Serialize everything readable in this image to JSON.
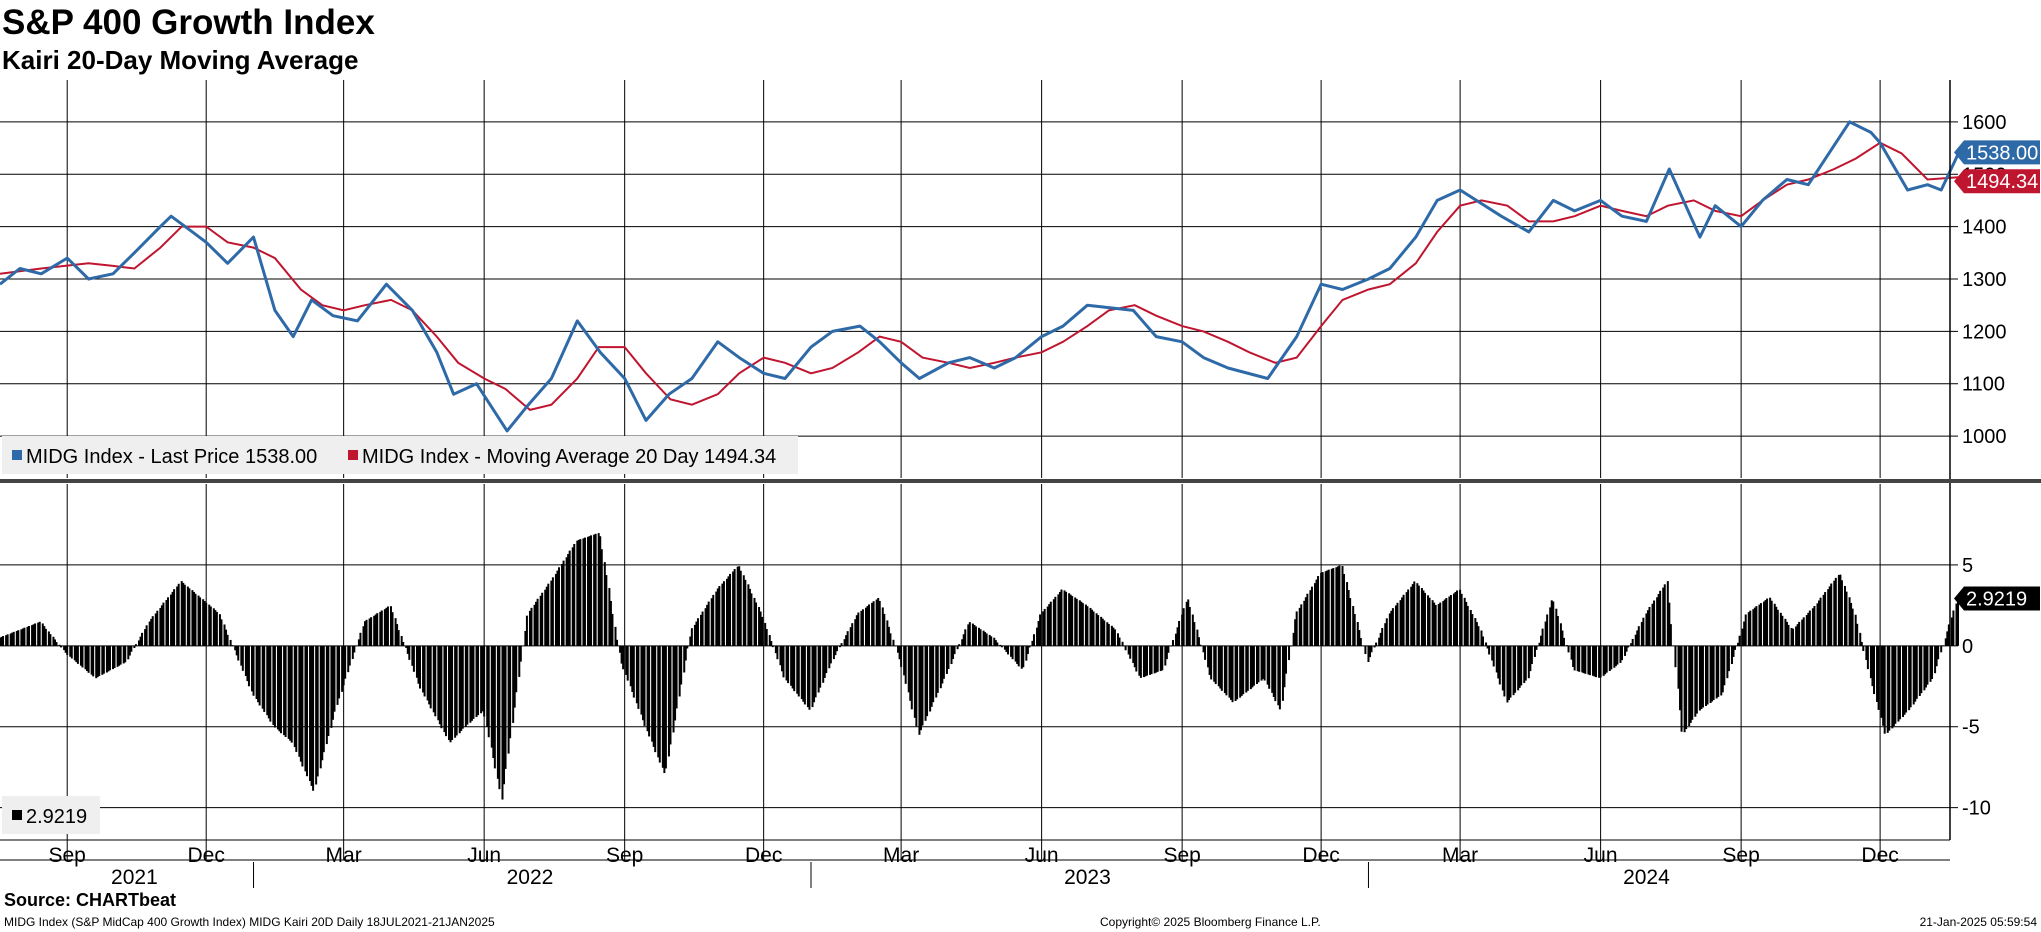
{
  "title": "S&P 400 Growth Index",
  "subtitle": "Kairi 20-Day Moving Average",
  "footer": {
    "source": "Source: CHARTbeat",
    "description": "MIDG Index (S&P MidCap 400 Growth Index) MIDG Kairi 20D  Daily 18JUL2021-21JAN2025",
    "copyright": "Copyright© 2025 Bloomberg Finance L.P.",
    "timestamp": "21-Jan-2025 05:59:54"
  },
  "colors": {
    "price": "#2f6aa8",
    "moving_average": "#c0152f",
    "kairi": "#000000"
  },
  "chart_data": [
    {
      "type": "line",
      "ylim": [
        920,
        1680
      ],
      "yticks": [
        1000,
        1100,
        1200,
        1300,
        1400,
        1500,
        1600
      ],
      "grid": true,
      "legend_position": "bottom-left",
      "legend": [
        {
          "label": "MIDG Index - Last Price 1538.00",
          "color": "#2f6aa8"
        },
        {
          "label": "MIDG Index - Moving Average 20 Day 1494.34",
          "color": "#c0152f"
        }
      ],
      "value_tags": [
        {
          "label": "1538.00",
          "value": 1538.0,
          "color": "#2f6aa8"
        },
        {
          "label": "1494.34",
          "value": 1494.34,
          "color": "#c0152f"
        }
      ],
      "series": [
        {
          "key": "last_price",
          "color": "#2f6aa8",
          "x": [
            "2021-07-19",
            "2021-08-01",
            "2021-08-15",
            "2021-09-01",
            "2021-09-15",
            "2021-10-01",
            "2021-10-15",
            "2021-11-01",
            "2021-11-08",
            "2021-11-22",
            "2021-12-01",
            "2021-12-15",
            "2022-01-01",
            "2022-01-15",
            "2022-01-27",
            "2022-02-08",
            "2022-02-22",
            "2022-03-10",
            "2022-03-29",
            "2022-04-15",
            "2022-05-01",
            "2022-05-12",
            "2022-05-27",
            "2022-06-16",
            "2022-06-30",
            "2022-07-15",
            "2022-08-01",
            "2022-08-16",
            "2022-09-01",
            "2022-09-15",
            "2022-09-30",
            "2022-10-15",
            "2022-11-01",
            "2022-11-15",
            "2022-12-01",
            "2022-12-15",
            "2023-01-01",
            "2023-01-15",
            "2023-02-02",
            "2023-02-15",
            "2023-03-01",
            "2023-03-13",
            "2023-04-01",
            "2023-04-15",
            "2023-05-01",
            "2023-05-15",
            "2023-06-01",
            "2023-06-15",
            "2023-07-01",
            "2023-07-31",
            "2023-08-15",
            "2023-09-01",
            "2023-09-15",
            "2023-10-01",
            "2023-10-27",
            "2023-11-15",
            "2023-12-01",
            "2023-12-15",
            "2024-01-01",
            "2024-01-15",
            "2024-02-01",
            "2024-02-15",
            "2024-03-01",
            "2024-03-28",
            "2024-04-15",
            "2024-05-01",
            "2024-05-15",
            "2024-06-01",
            "2024-06-15",
            "2024-07-01",
            "2024-07-16",
            "2024-08-05",
            "2024-08-15",
            "2024-09-01",
            "2024-09-15",
            "2024-10-01",
            "2024-10-15",
            "2024-11-11",
            "2024-11-25",
            "2024-12-01",
            "2024-12-19",
            "2025-01-01",
            "2025-01-10",
            "2025-01-21"
          ],
          "values": [
            1290,
            1320,
            1310,
            1340,
            1300,
            1310,
            1350,
            1400,
            1420,
            1390,
            1370,
            1330,
            1380,
            1240,
            1190,
            1260,
            1230,
            1220,
            1290,
            1240,
            1160,
            1080,
            1100,
            1010,
            1060,
            1110,
            1220,
            1160,
            1110,
            1030,
            1080,
            1110,
            1180,
            1150,
            1120,
            1110,
            1170,
            1200,
            1210,
            1180,
            1140,
            1110,
            1140,
            1150,
            1130,
            1150,
            1190,
            1210,
            1250,
            1240,
            1190,
            1180,
            1150,
            1130,
            1110,
            1190,
            1290,
            1280,
            1300,
            1320,
            1380,
            1450,
            1470,
            1420,
            1390,
            1450,
            1430,
            1450,
            1420,
            1410,
            1510,
            1380,
            1440,
            1400,
            1450,
            1490,
            1480,
            1600,
            1580,
            1560,
            1470,
            1480,
            1470,
            1538
          ]
        },
        {
          "key": "moving_average_20d",
          "color": "#c0152f",
          "x": [
            "2021-07-19",
            "2021-08-15",
            "2021-09-15",
            "2021-10-01",
            "2021-10-15",
            "2021-11-01",
            "2021-11-15",
            "2021-12-01",
            "2021-12-15",
            "2022-01-01",
            "2022-01-15",
            "2022-02-01",
            "2022-02-15",
            "2022-03-01",
            "2022-03-15",
            "2022-04-01",
            "2022-04-15",
            "2022-05-01",
            "2022-05-15",
            "2022-06-01",
            "2022-06-15",
            "2022-07-01",
            "2022-07-15",
            "2022-08-01",
            "2022-08-15",
            "2022-09-01",
            "2022-09-15",
            "2022-10-01",
            "2022-10-15",
            "2022-11-01",
            "2022-11-15",
            "2022-12-01",
            "2022-12-15",
            "2023-01-01",
            "2023-01-15",
            "2023-02-01",
            "2023-02-15",
            "2023-03-01",
            "2023-03-15",
            "2023-04-01",
            "2023-04-15",
            "2023-05-01",
            "2023-05-15",
            "2023-06-01",
            "2023-06-15",
            "2023-07-01",
            "2023-07-15",
            "2023-08-01",
            "2023-08-15",
            "2023-09-01",
            "2023-09-15",
            "2023-10-01",
            "2023-10-15",
            "2023-11-01",
            "2023-11-15",
            "2023-12-01",
            "2023-12-15",
            "2024-01-01",
            "2024-01-15",
            "2024-02-01",
            "2024-02-15",
            "2024-03-01",
            "2024-03-15",
            "2024-04-01",
            "2024-04-15",
            "2024-05-01",
            "2024-05-15",
            "2024-06-01",
            "2024-06-15",
            "2024-07-01",
            "2024-07-15",
            "2024-08-01",
            "2024-08-15",
            "2024-09-01",
            "2024-09-15",
            "2024-10-01",
            "2024-10-15",
            "2024-11-01",
            "2024-11-15",
            "2024-12-01",
            "2024-12-15",
            "2025-01-01",
            "2025-01-21"
          ],
          "values": [
            1310,
            1320,
            1330,
            1325,
            1320,
            1360,
            1400,
            1400,
            1370,
            1360,
            1340,
            1280,
            1250,
            1240,
            1250,
            1260,
            1240,
            1190,
            1140,
            1110,
            1090,
            1050,
            1060,
            1110,
            1170,
            1170,
            1120,
            1070,
            1060,
            1080,
            1120,
            1150,
            1140,
            1120,
            1130,
            1160,
            1190,
            1180,
            1150,
            1140,
            1130,
            1140,
            1150,
            1160,
            1180,
            1210,
            1240,
            1250,
            1230,
            1210,
            1200,
            1180,
            1160,
            1140,
            1150,
            1210,
            1260,
            1280,
            1290,
            1330,
            1390,
            1440,
            1450,
            1440,
            1410,
            1410,
            1420,
            1440,
            1430,
            1420,
            1440,
            1450,
            1430,
            1420,
            1450,
            1480,
            1490,
            1510,
            1530,
            1560,
            1540,
            1490,
            1494.34
          ]
        }
      ]
    },
    {
      "type": "bar",
      "ylim": [
        -12,
        10
      ],
      "yticks": [
        -10,
        -5,
        0,
        5
      ],
      "grid": true,
      "legend_position": "bottom-left",
      "legend": [
        {
          "label": "2.9219",
          "color": "#000000"
        }
      ],
      "value_tags": [
        {
          "label": "2.9219",
          "value": 2.9219,
          "color": "#000000"
        }
      ],
      "series": [
        {
          "key": "kairi_20d",
          "color": "#000000",
          "x": [
            "2021-07-19",
            "2021-08-15",
            "2021-09-01",
            "2021-09-20",
            "2021-10-10",
            "2021-10-25",
            "2021-11-15",
            "2021-12-10",
            "2022-01-01",
            "2022-01-15",
            "2022-01-27",
            "2022-02-10",
            "2022-02-24",
            "2022-03-15",
            "2022-04-01",
            "2022-04-20",
            "2022-05-10",
            "2022-05-20",
            "2022-06-01",
            "2022-06-13",
            "2022-06-30",
            "2022-07-15",
            "2022-08-01",
            "2022-08-16",
            "2022-08-30",
            "2022-09-15",
            "2022-09-28",
            "2022-10-15",
            "2022-11-01",
            "2022-11-15",
            "2022-11-30",
            "2022-12-15",
            "2023-01-01",
            "2023-01-15",
            "2023-02-01",
            "2023-02-15",
            "2023-03-01",
            "2023-03-13",
            "2023-03-30",
            "2023-04-15",
            "2023-05-01",
            "2023-05-20",
            "2023-06-01",
            "2023-06-15",
            "2023-07-01",
            "2023-07-20",
            "2023-08-05",
            "2023-08-20",
            "2023-09-05",
            "2023-09-20",
            "2023-10-05",
            "2023-10-25",
            "2023-11-05",
            "2023-11-15",
            "2023-12-01",
            "2023-12-15",
            "2024-01-01",
            "2024-01-15",
            "2024-02-01",
            "2024-02-15",
            "2024-03-01",
            "2024-03-15",
            "2024-04-01",
            "2024-04-15",
            "2024-05-01",
            "2024-05-15",
            "2024-06-01",
            "2024-06-15",
            "2024-07-01",
            "2024-07-15",
            "2024-07-25",
            "2024-08-05",
            "2024-08-20",
            "2024-09-05",
            "2024-09-20",
            "2024-10-05",
            "2024-10-20",
            "2024-11-05",
            "2024-11-15",
            "2024-11-25",
            "2024-12-05",
            "2024-12-20",
            "2025-01-05",
            "2025-01-21"
          ],
          "values": [
            0.5,
            1.5,
            -0.5,
            -2.0,
            -1.0,
            1.5,
            4.0,
            2.0,
            -3.0,
            -5.0,
            -6.0,
            -9.0,
            -4.0,
            1.5,
            2.5,
            -2.5,
            -6.0,
            -5.0,
            -4.0,
            -9.5,
            2.0,
            4.0,
            6.5,
            7.0,
            -1.0,
            -5.0,
            -8.0,
            1.0,
            3.5,
            5.0,
            2.0,
            -2.0,
            -4.0,
            -1.0,
            2.0,
            3.0,
            -1.0,
            -5.5,
            -2.0,
            1.5,
            0.5,
            -1.5,
            2.0,
            3.5,
            2.5,
            1.0,
            -2.0,
            -1.5,
            3.0,
            -2.0,
            -3.5,
            -2.0,
            -4.0,
            2.0,
            4.5,
            5.0,
            -1.0,
            2.0,
            4.0,
            2.5,
            3.5,
            1.0,
            -3.5,
            -2.0,
            3.0,
            -1.5,
            -2.0,
            -1.0,
            2.0,
            4.0,
            -5.5,
            -4.0,
            -3.0,
            2.0,
            3.0,
            1.0,
            2.5,
            4.5,
            2.0,
            -2.0,
            -5.5,
            -4.0,
            -2.0,
            2.9219
          ]
        }
      ]
    }
  ],
  "x_axis": {
    "month_labels": [
      {
        "label": "Sep",
        "date": "2021-09-01"
      },
      {
        "label": "Dec",
        "date": "2021-12-01"
      },
      {
        "label": "Mar",
        "date": "2022-03-01"
      },
      {
        "label": "Jun",
        "date": "2022-06-01"
      },
      {
        "label": "Sep",
        "date": "2022-09-01"
      },
      {
        "label": "Dec",
        "date": "2022-12-01"
      },
      {
        "label": "Mar",
        "date": "2023-03-01"
      },
      {
        "label": "Jun",
        "date": "2023-06-01"
      },
      {
        "label": "Sep",
        "date": "2023-09-01"
      },
      {
        "label": "Dec",
        "date": "2023-12-01"
      },
      {
        "label": "Mar",
        "date": "2024-03-01"
      },
      {
        "label": "Jun",
        "date": "2024-06-01"
      },
      {
        "label": "Sep",
        "date": "2024-09-01"
      },
      {
        "label": "Dec",
        "date": "2024-12-01"
      }
    ],
    "year_labels": [
      {
        "label": "2021",
        "date": "2021-10-15"
      },
      {
        "label": "2022",
        "date": "2022-07-01"
      },
      {
        "label": "2023",
        "date": "2023-07-01"
      },
      {
        "label": "2024",
        "date": "2024-07-01"
      }
    ],
    "year_dividers": [
      "2022-01-01",
      "2023-01-01",
      "2024-01-01"
    ]
  }
}
